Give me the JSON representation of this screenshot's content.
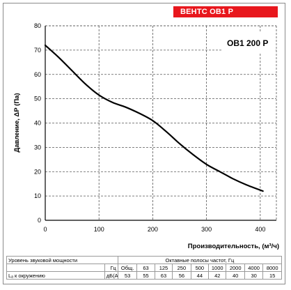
{
  "badge": "ВЕНТС ОВ1 Р",
  "chart_data": {
    "type": "line",
    "model_label": "ОВ1 200 Р",
    "ylabel": "Давление, ΔP (Па)",
    "xlabel": "Производительность, (м³/ч)",
    "xlim": [
      0,
      430
    ],
    "ylim": [
      0,
      80
    ],
    "x_ticks": [
      "0",
      "100",
      "200",
      "300",
      "400"
    ],
    "y_ticks": [
      "0",
      "10",
      "20",
      "30",
      "40",
      "50",
      "60",
      "70",
      "80"
    ],
    "grid": true,
    "series": [
      {
        "x": [
          0,
          25,
          50,
          75,
          100,
          125,
          150,
          175,
          200,
          225,
          250,
          275,
          300,
          325,
          350,
          375,
          405
        ],
        "y": [
          72,
          67,
          61.5,
          56,
          51.5,
          48.5,
          46.5,
          44,
          41,
          36.5,
          31.5,
          27,
          23,
          20,
          17,
          14.5,
          12
        ]
      }
    ]
  },
  "sound_table": {
    "title": "Уровень звуковой мощности",
    "bands_title": "Октавные полосы частот, Гц",
    "unit_label": "Гц",
    "row_label": "Lₐ к окружению",
    "row_unit": "дБ(А)",
    "columns": [
      "Общ.",
      "63",
      "125",
      "250",
      "500",
      "1000",
      "2000",
      "4000",
      "8000"
    ],
    "values": [
      "53",
      "55",
      "63",
      "56",
      "44",
      "42",
      "40",
      "30",
      "15"
    ]
  }
}
